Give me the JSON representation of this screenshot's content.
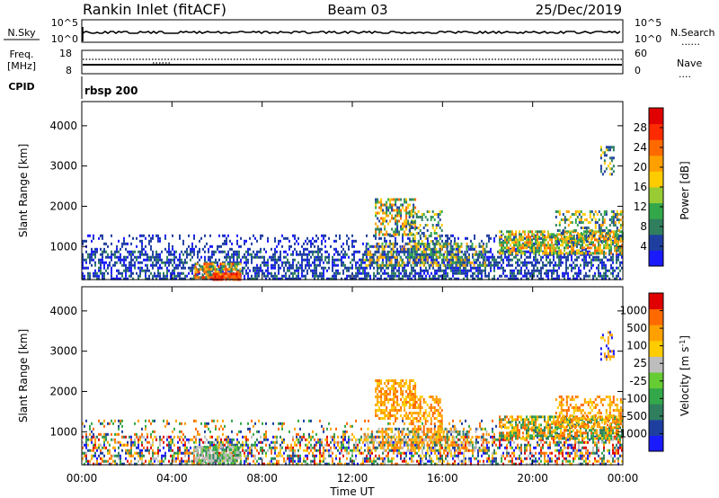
{
  "header": {
    "station": "Rankin Inlet (fitACF)",
    "beam": "Beam 03",
    "date": "25/Dec/2019"
  },
  "labels": {
    "nsky": "N.Sky",
    "nsearch": "N.Search",
    "nsearch_line": "......",
    "freq": "Freq.",
    "mhz": "[MHz]",
    "nave": "Nave",
    "nave_line": "....",
    "cpid": "CPID",
    "cpid_value": "rbsp 200",
    "ylabel": "Slant Range [km]",
    "xlabel": "Time UT"
  },
  "small_axes": {
    "nsky_left": [
      "10^5",
      "10^0"
    ],
    "nsky_right": [
      "10^5",
      "10^0"
    ],
    "freq_left": [
      "18",
      "8"
    ],
    "freq_right": [
      "60",
      "0"
    ]
  },
  "chart_data": [
    {
      "type": "heatmap",
      "name": "power",
      "ylabel": "Slant Range [km]",
      "xlabel": "Time UT",
      "x_ticks": [
        "00:00",
        "04:00",
        "08:00",
        "12:00",
        "16:00",
        "20:00",
        "00:00"
      ],
      "x_hours": [
        0,
        4,
        8,
        12,
        16,
        20,
        24
      ],
      "y_ticks": [
        1000,
        2000,
        3000,
        4000
      ],
      "xlim_hours": [
        0,
        24
      ],
      "ylim_km": [
        180,
        4600
      ],
      "colorbar": {
        "label": "Power [dB]",
        "ticks": [
          "4",
          "8",
          "12",
          "16",
          "20",
          "24",
          "28"
        ],
        "colors": [
          "#1a1aff",
          "#1e3fa0",
          "#2f7f5f",
          "#33a84a",
          "#99cc33",
          "#ffcc00",
          "#ffa000",
          "#ff6a00",
          "#ff2a00",
          "#e00000"
        ]
      },
      "regions": [
        {
          "t0": 0.0,
          "t1": 24.0,
          "r0": 180,
          "r1": 900,
          "d": 0.55,
          "c": [
            0,
            1,
            1,
            2
          ]
        },
        {
          "t0": 0.0,
          "t1": 24.0,
          "r0": 900,
          "r1": 1300,
          "d": 0.22,
          "c": [
            0,
            1,
            1
          ]
        },
        {
          "t0": 5.0,
          "t1": 7.0,
          "r0": 230,
          "r1": 600,
          "d": 0.75,
          "c": [
            2,
            3,
            5,
            6,
            7,
            8
          ]
        },
        {
          "t0": 5.8,
          "t1": 7.0,
          "r0": 200,
          "r1": 350,
          "d": 0.9,
          "c": [
            7,
            8,
            9
          ]
        },
        {
          "t0": 13.0,
          "t1": 14.8,
          "r0": 1300,
          "r1": 2200,
          "d": 0.55,
          "c": [
            1,
            2,
            3,
            5,
            6,
            7
          ]
        },
        {
          "t0": 14.5,
          "t1": 16.0,
          "r0": 700,
          "r1": 1900,
          "d": 0.35,
          "c": [
            1,
            2,
            3,
            5
          ]
        },
        {
          "t0": 12.5,
          "t1": 18.0,
          "r0": 500,
          "r1": 1100,
          "d": 0.45,
          "c": [
            1,
            2,
            3,
            5,
            6
          ]
        },
        {
          "t0": 18.5,
          "t1": 24.0,
          "r0": 800,
          "r1": 1400,
          "d": 0.7,
          "c": [
            2,
            3,
            4,
            5,
            6,
            7
          ]
        },
        {
          "t0": 21.0,
          "t1": 24.0,
          "r0": 1100,
          "r1": 1900,
          "d": 0.45,
          "c": [
            1,
            2,
            3,
            5,
            6
          ]
        },
        {
          "t0": 23.0,
          "t1": 23.6,
          "r0": 2800,
          "r1": 3500,
          "d": 0.4,
          "c": [
            1,
            2,
            5
          ]
        }
      ]
    },
    {
      "type": "heatmap",
      "name": "velocity",
      "ylabel": "Slant Range [km]",
      "xlabel": "Time UT",
      "x_ticks": [
        "00:00",
        "04:00",
        "08:00",
        "12:00",
        "16:00",
        "20:00",
        "00:00"
      ],
      "x_hours": [
        0,
        4,
        8,
        12,
        16,
        20,
        24
      ],
      "y_ticks": [
        1000,
        2000,
        3000,
        4000
      ],
      "xlim_hours": [
        0,
        24
      ],
      "ylim_km": [
        180,
        4600
      ],
      "colorbar": {
        "label": "Velocity [m s^-1]",
        "ticks": [
          "1000",
          "500",
          "100",
          "25",
          "-25",
          "-100",
          "-500",
          "-1000"
        ],
        "colors": [
          "#1a1aff",
          "#1e3fa0",
          "#2f7f5f",
          "#33a84a",
          "#66cc33",
          "#bdbdbd",
          "#ffcc00",
          "#ffa000",
          "#ff6a00",
          "#e00000"
        ]
      },
      "regions": [
        {
          "t0": 0.0,
          "t1": 24.0,
          "r0": 180,
          "r1": 900,
          "d": 0.5,
          "c": [
            0,
            1,
            2,
            3,
            5,
            6,
            7,
            8,
            9
          ]
        },
        {
          "t0": 0.0,
          "t1": 24.0,
          "r0": 900,
          "r1": 1300,
          "d": 0.15,
          "c": [
            1,
            3,
            7,
            8
          ]
        },
        {
          "t0": 5.0,
          "t1": 7.0,
          "r0": 230,
          "r1": 650,
          "d": 0.75,
          "c": [
            2,
            3,
            5,
            5,
            4
          ]
        },
        {
          "t0": 13.0,
          "t1": 14.8,
          "r0": 1300,
          "r1": 2300,
          "d": 0.6,
          "c": [
            6,
            7,
            8,
            7
          ]
        },
        {
          "t0": 14.5,
          "t1": 16.0,
          "r0": 700,
          "r1": 1900,
          "d": 0.4,
          "c": [
            6,
            7,
            8
          ]
        },
        {
          "t0": 12.5,
          "t1": 18.0,
          "r0": 500,
          "r1": 1100,
          "d": 0.45,
          "c": [
            6,
            7,
            8,
            2,
            5
          ]
        },
        {
          "t0": 18.5,
          "t1": 24.0,
          "r0": 800,
          "r1": 1400,
          "d": 0.7,
          "c": [
            2,
            3,
            7,
            8,
            6
          ]
        },
        {
          "t0": 21.0,
          "t1": 24.0,
          "r0": 1100,
          "r1": 1900,
          "d": 0.45,
          "c": [
            7,
            8,
            6
          ]
        },
        {
          "t0": 23.0,
          "t1": 23.6,
          "r0": 2800,
          "r1": 3500,
          "d": 0.4,
          "c": [
            6,
            7,
            0
          ]
        }
      ]
    }
  ]
}
